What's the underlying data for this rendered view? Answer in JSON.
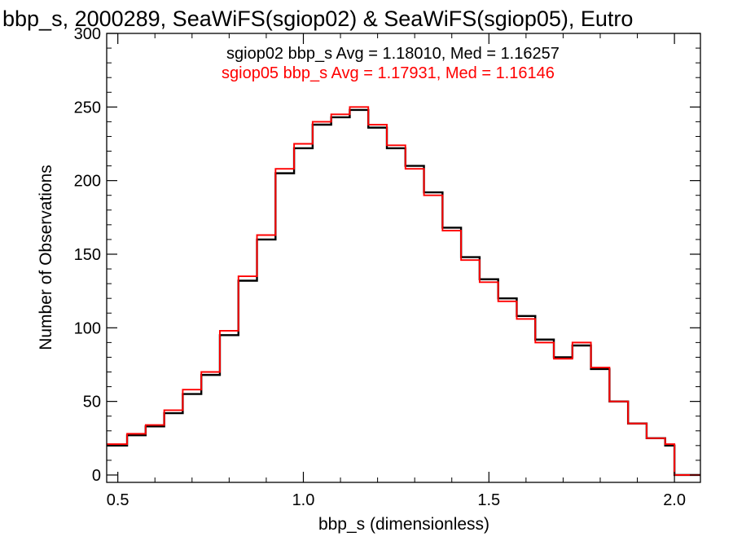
{
  "chart_data": {
    "type": "line",
    "title": "bbp_s, 2000289, SeaWiFS(sgiop02) & SeaWiFS(sgiop05), Eutro",
    "xlabel": "bbp_s (dimensionless)",
    "ylabel": "Number of Observations",
    "xlim": [
      0.47,
      2.07
    ],
    "ylim": [
      -5,
      300
    ],
    "xticks": [
      0.5,
      1.0,
      1.5,
      2.0
    ],
    "xtick_labels": [
      "0.5",
      "1.0",
      "1.5",
      "2.0"
    ],
    "yticks": [
      0,
      50,
      100,
      150,
      200,
      250,
      300
    ],
    "ytick_labels": [
      "0",
      "50",
      "100",
      "150",
      "200",
      "250",
      "300"
    ],
    "grid": false,
    "annotations": [
      {
        "text": "sgiop02 bbp_s Avg = 1.18010, Med = 1.16257",
        "color": "#000000"
      },
      {
        "text": "sgiop05 bbp_s Avg = 1.17931, Med = 1.16146",
        "color": "#ff0000"
      }
    ],
    "series": [
      {
        "color": "#000000",
        "x": [
          0.47,
          0.525,
          0.575,
          0.625,
          0.675,
          0.725,
          0.775,
          0.825,
          0.875,
          0.925,
          0.975,
          1.025,
          1.075,
          1.125,
          1.175,
          1.225,
          1.275,
          1.325,
          1.375,
          1.425,
          1.475,
          1.525,
          1.575,
          1.625,
          1.675,
          1.725,
          1.775,
          1.825,
          1.875,
          1.925,
          1.975,
          2.0,
          2.07
        ],
        "y": [
          20,
          27,
          33,
          42,
          55,
          68,
          95,
          132,
          160,
          205,
          222,
          238,
          243,
          248,
          236,
          222,
          210,
          192,
          168,
          148,
          133,
          120,
          108,
          92,
          80,
          88,
          72,
          50,
          35,
          25,
          20,
          0,
          0
        ]
      },
      {
        "color": "#ff0000",
        "x": [
          0.47,
          0.525,
          0.575,
          0.625,
          0.675,
          0.725,
          0.775,
          0.825,
          0.875,
          0.925,
          0.975,
          1.025,
          1.075,
          1.125,
          1.175,
          1.225,
          1.275,
          1.325,
          1.375,
          1.425,
          1.475,
          1.525,
          1.575,
          1.625,
          1.675,
          1.725,
          1.775,
          1.825,
          1.875,
          1.925,
          1.975,
          2.0,
          2.07
        ],
        "y": [
          21,
          28,
          34,
          44,
          58,
          70,
          98,
          135,
          163,
          208,
          225,
          240,
          245,
          250,
          238,
          224,
          208,
          190,
          166,
          146,
          131,
          118,
          106,
          90,
          79,
          90,
          73,
          50,
          35,
          25,
          21,
          0,
          0
        ]
      }
    ]
  }
}
